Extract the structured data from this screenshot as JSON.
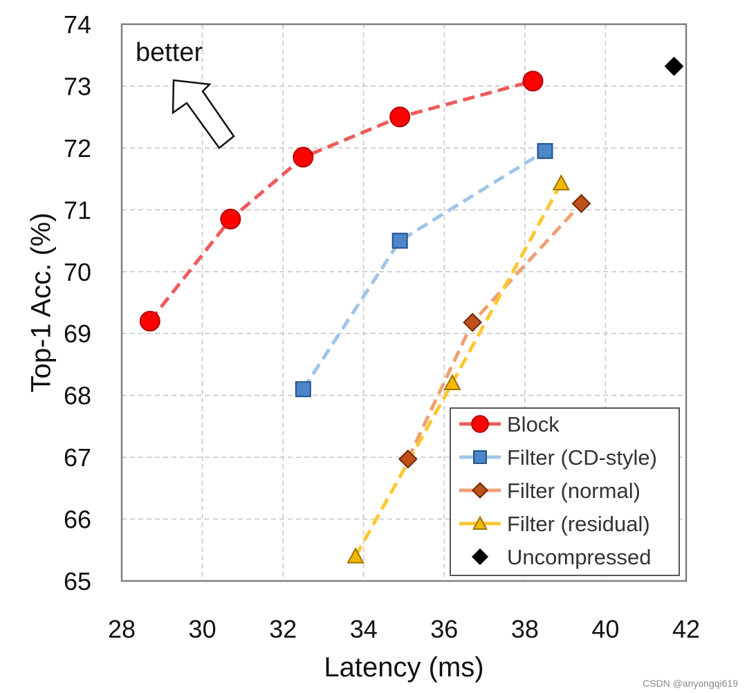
{
  "chart_data": {
    "type": "line",
    "title": "",
    "xlabel": "Latency (ms)",
    "ylabel": "Top-1 Acc. (%)",
    "xlim": [
      28,
      42
    ],
    "ylim": [
      65,
      74
    ],
    "xticks": [
      28,
      30,
      32,
      34,
      36,
      38,
      40,
      42
    ],
    "yticks": [
      65,
      66,
      67,
      68,
      69,
      70,
      71,
      72,
      73,
      74
    ],
    "grid": true,
    "legend_position": "bottom-right",
    "series": [
      {
        "name": "Block",
        "marker": "circle",
        "line_style": "dashed",
        "line_color": "#ee5a5a",
        "marker_fill": "#ff0000",
        "marker_stroke": "#b30000",
        "x": [
          28.7,
          30.7,
          32.5,
          34.9,
          38.2
        ],
        "y": [
          69.2,
          70.85,
          71.85,
          72.5,
          73.08
        ]
      },
      {
        "name": "Filter (CD-style)",
        "marker": "square",
        "line_style": "dashed",
        "line_color": "#9fc5e8",
        "marker_fill": "#4a86c8",
        "marker_stroke": "#24508a",
        "x": [
          32.5,
          34.9,
          38.5
        ],
        "y": [
          68.1,
          70.5,
          71.95
        ]
      },
      {
        "name": "Filter (normal)",
        "marker": "diamond",
        "line_style": "dashed",
        "line_color": "#f0a070",
        "marker_fill": "#c0501a",
        "marker_stroke": "#6e2a08",
        "x": [
          35.1,
          36.7,
          39.4
        ],
        "y": [
          66.97,
          69.18,
          71.1
        ]
      },
      {
        "name": "Filter (residual)",
        "marker": "triangle",
        "line_style": "dashed",
        "line_color": "#ffc830",
        "marker_fill": "#f5b800",
        "marker_stroke": "#9c7400",
        "x": [
          33.8,
          36.2,
          38.9
        ],
        "y": [
          65.4,
          68.2,
          71.43
        ]
      },
      {
        "name": "Uncompressed",
        "marker": "diamond",
        "line_style": "none",
        "line_color": "#000000",
        "marker_fill": "#000000",
        "marker_stroke": "#000000",
        "x": [
          41.7
        ],
        "y": [
          73.32
        ]
      }
    ],
    "annotations": [
      {
        "text": "better",
        "arrow": "up-left"
      }
    ]
  },
  "watermark": "CSDN @anyongqi619"
}
